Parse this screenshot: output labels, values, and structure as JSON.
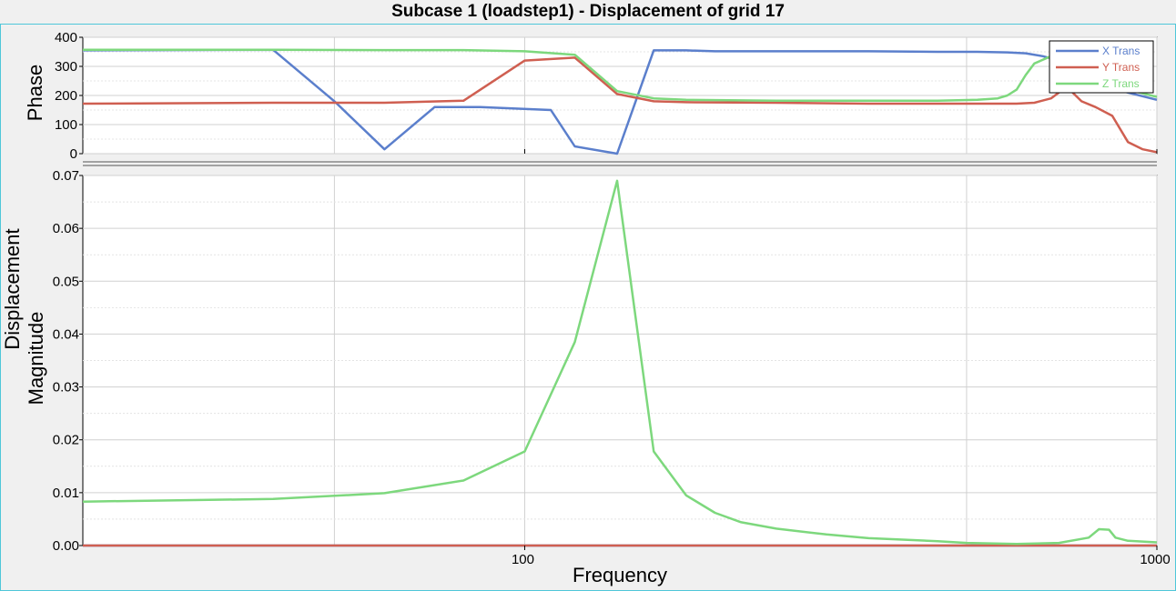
{
  "title": "Subcase 1 (loadstep1) - Displacement of grid 17",
  "colors": {
    "x": "#5b7fcc",
    "y": "#cf5f51",
    "z": "#7dd87d",
    "frame": "#4fc7d9"
  },
  "chart_data": [
    {
      "type": "line",
      "ylabel": "Phase",
      "xscale": "log",
      "xlim": [
        20,
        1000
      ],
      "ylim": [
        0,
        400
      ],
      "yticks": [
        0,
        100,
        200,
        300,
        400
      ],
      "grid": true,
      "legend": "top-right",
      "series": [
        {
          "name": "X Trans",
          "color": "#5b7fcc",
          "x": [
            20,
            40,
            50,
            60,
            72,
            80,
            85,
            110,
            120,
            140,
            160,
            180,
            200,
            250,
            350,
            450,
            520,
            580,
            620,
            660,
            700,
            750,
            800,
            900,
            1000
          ],
          "y": [
            355,
            357,
            180,
            15,
            160,
            160,
            160,
            150,
            25,
            0,
            355,
            355,
            352,
            352,
            352,
            350,
            350,
            348,
            345,
            335,
            320,
            270,
            240,
            210,
            185
          ]
        },
        {
          "name": "Y Trans",
          "color": "#cf5f51",
          "x": [
            20,
            40,
            60,
            80,
            100,
            120,
            140,
            160,
            180,
            250,
            350,
            450,
            550,
            600,
            640,
            680,
            720,
            760,
            800,
            850,
            900,
            950,
            1000
          ],
          "y": [
            172,
            175,
            175,
            182,
            320,
            330,
            205,
            180,
            177,
            175,
            172,
            172,
            172,
            172,
            175,
            190,
            230,
            180,
            160,
            130,
            40,
            15,
            5
          ]
        },
        {
          "name": "Z Trans",
          "color": "#7dd87d",
          "x": [
            20,
            40,
            60,
            80,
            100,
            120,
            140,
            160,
            180,
            250,
            350,
            450,
            520,
            560,
            580,
            600,
            620,
            640,
            680,
            720,
            800,
            900,
            1000
          ],
          "y": [
            357,
            357,
            356,
            356,
            352,
            340,
            215,
            190,
            185,
            182,
            182,
            182,
            185,
            190,
            200,
            220,
            270,
            310,
            335,
            330,
            260,
            220,
            195
          ]
        }
      ]
    },
    {
      "type": "line",
      "xlabel": "Frequency",
      "ylabel": "Displacement Magnitude",
      "xscale": "log",
      "xlim": [
        20,
        1000
      ],
      "ylim": [
        0,
        0.07
      ],
      "xticks": [
        100,
        1000
      ],
      "yticks": [
        0.0,
        0.01,
        0.02,
        0.03,
        0.04,
        0.05,
        0.06,
        0.07
      ],
      "grid": true,
      "series": [
        {
          "name": "X Trans",
          "color": "#5b7fcc",
          "x": [
            20,
            1000
          ],
          "y": [
            0,
            0
          ]
        },
        {
          "name": "Y Trans",
          "color": "#cf5f51",
          "x": [
            20,
            1000
          ],
          "y": [
            0,
            0
          ]
        },
        {
          "name": "Z Trans",
          "color": "#7dd87d",
          "x": [
            20,
            40,
            60,
            80,
            100,
            120,
            140,
            160,
            180,
            200,
            220,
            250,
            300,
            350,
            400,
            450,
            500,
            600,
            700,
            780,
            810,
            840,
            860,
            900,
            1000
          ],
          "y": [
            0.0083,
            0.0088,
            0.0099,
            0.0123,
            0.0178,
            0.0385,
            0.069,
            0.0178,
            0.0095,
            0.0062,
            0.0044,
            0.0032,
            0.0021,
            0.0014,
            0.0011,
            0.0008,
            0.0005,
            0.0003,
            0.0005,
            0.0015,
            0.0031,
            0.003,
            0.0015,
            0.0009,
            0.0006
          ]
        }
      ]
    }
  ]
}
